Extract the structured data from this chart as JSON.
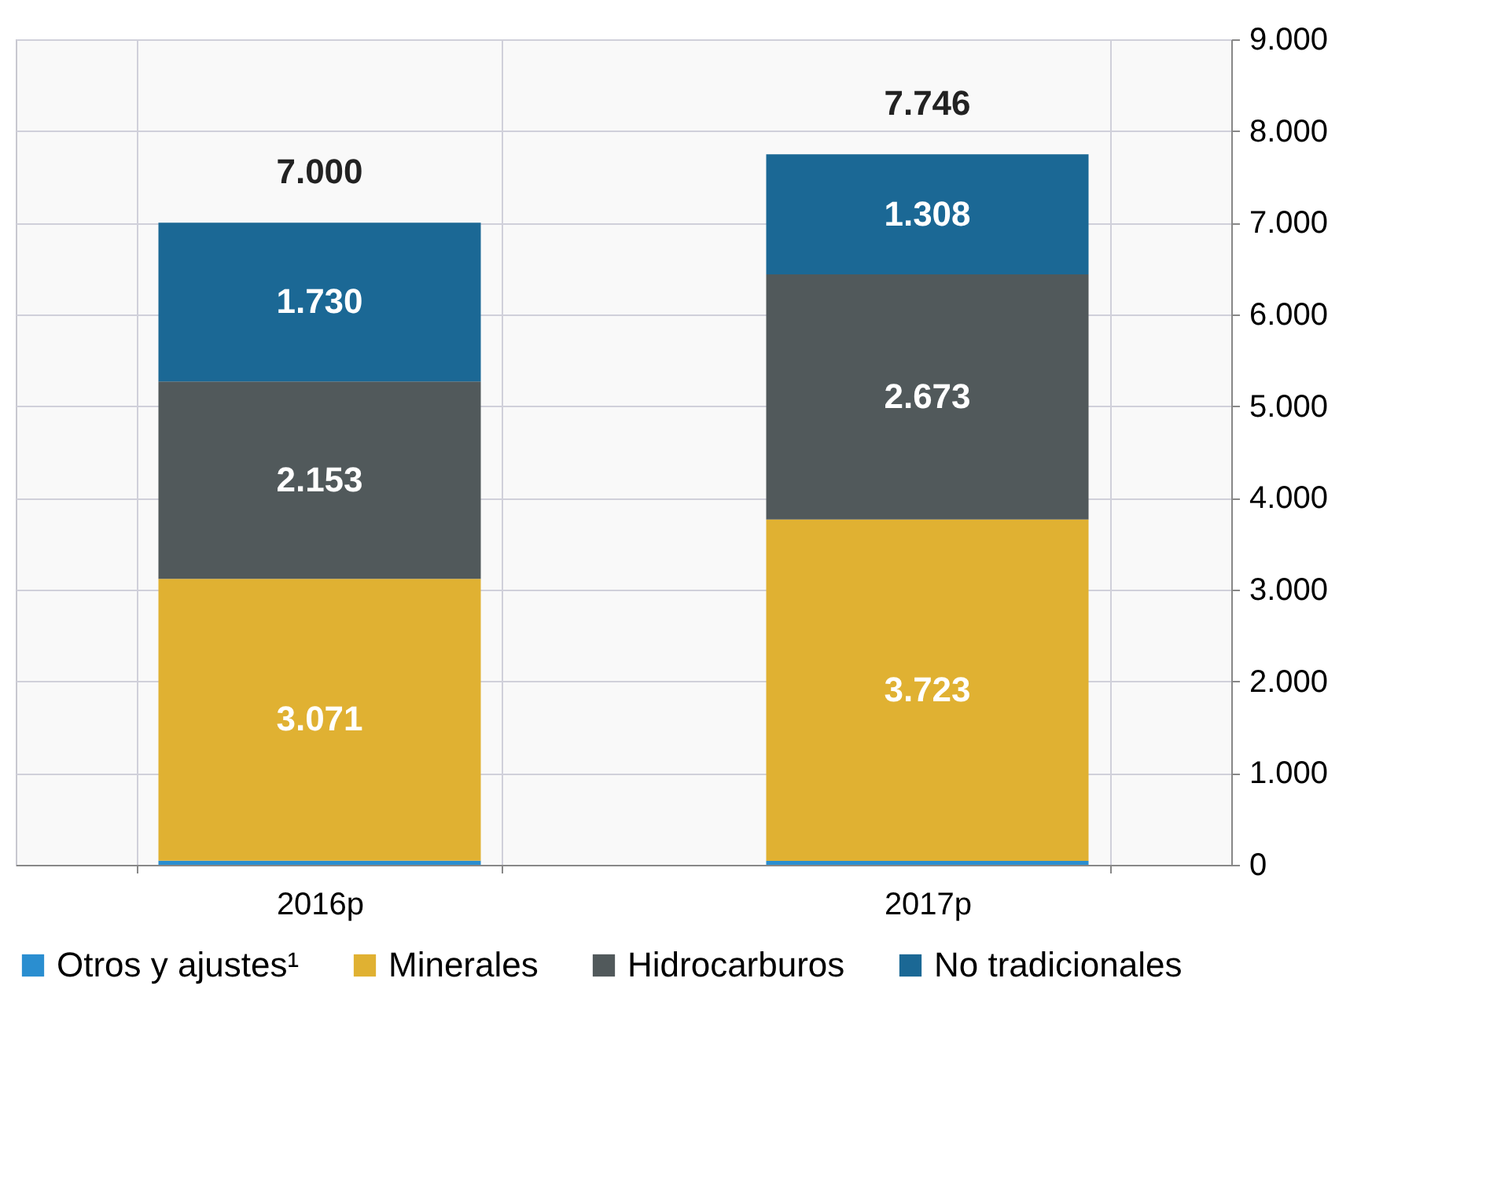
{
  "chart_data": {
    "type": "bar",
    "stacked": true,
    "categories": [
      "2016p",
      "2017p"
    ],
    "series": [
      {
        "name": "Otros y ajustes¹",
        "color": "#2a8ed0",
        "values": [
          46,
          42
        ],
        "value_labels": [
          null,
          null
        ]
      },
      {
        "name": "Minerales",
        "color": "#e0b132",
        "values": [
          3071,
          3723
        ],
        "value_labels": [
          "3.071",
          "3.723"
        ]
      },
      {
        "name": "Hidrocarburos",
        "color": "#51595b",
        "values": [
          2153,
          2673
        ],
        "value_labels": [
          "2.153",
          "2.673"
        ]
      },
      {
        "name": "No tradicionales",
        "color": "#1b6895",
        "values": [
          1730,
          1308
        ],
        "value_labels": [
          "1.730",
          "1.308"
        ]
      }
    ],
    "totals": [
      "7.000",
      "7.746"
    ],
    "ylim": [
      0,
      9000
    ],
    "yticks": [
      {
        "value": 0,
        "label": "0"
      },
      {
        "value": 1000,
        "label": "1.000"
      },
      {
        "value": 2000,
        "label": "2.000"
      },
      {
        "value": 3000,
        "label": "3.000"
      },
      {
        "value": 4000,
        "label": "4.000"
      },
      {
        "value": 5000,
        "label": "5.000"
      },
      {
        "value": 6000,
        "label": "6.000"
      },
      {
        "value": 7000,
        "label": "7.000"
      },
      {
        "value": 8000,
        "label": "8.000"
      },
      {
        "value": 9000,
        "label": "9.000"
      }
    ],
    "grid": true,
    "legend": "bottom"
  }
}
